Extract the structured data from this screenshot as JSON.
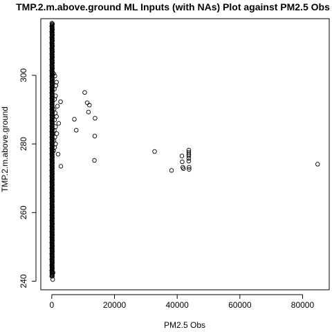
{
  "chart_data": {
    "type": "scatter",
    "title": "TMP.2.m.above.ground ML Inputs (with NAs) Plot against PM2.5 Obs",
    "xlabel": "PM2.5 Obs",
    "ylabel": "TMP.2.m.above.ground",
    "xlim": [
      -3500,
      88500
    ],
    "ylim": [
      237.5,
      316.5
    ],
    "x_ticks": [
      0,
      20000,
      40000,
      60000,
      80000
    ],
    "y_ticks": [
      240,
      260,
      280,
      300
    ],
    "x_tick_labels": [
      "0",
      "20000",
      "40000",
      "60000",
      "80000"
    ],
    "y_tick_labels": [
      "240",
      "260",
      "280",
      "300"
    ],
    "grid": false,
    "legend": "none",
    "marker": "open-circle",
    "dense_column": {
      "x": 100,
      "y_min": 241.5,
      "y_max": 315.2,
      "count": 320
    },
    "points": [
      {
        "x": 300,
        "y": 240.5
      },
      {
        "x": 200,
        "y": 241.5
      },
      {
        "x": 400,
        "y": 242.5
      },
      {
        "x": 600,
        "y": 300.5
      },
      {
        "x": 1000,
        "y": 299.8
      },
      {
        "x": 1500,
        "y": 298
      },
      {
        "x": 1300,
        "y": 297
      },
      {
        "x": 800,
        "y": 296
      },
      {
        "x": 1200,
        "y": 294
      },
      {
        "x": 900,
        "y": 293
      },
      {
        "x": 2800,
        "y": 292.3
      },
      {
        "x": 1800,
        "y": 291
      },
      {
        "x": 700,
        "y": 290
      },
      {
        "x": 1100,
        "y": 289
      },
      {
        "x": 1500,
        "y": 288
      },
      {
        "x": 900,
        "y": 287
      },
      {
        "x": 2200,
        "y": 286
      },
      {
        "x": 1200,
        "y": 285
      },
      {
        "x": 800,
        "y": 284
      },
      {
        "x": 1600,
        "y": 283
      },
      {
        "x": 1000,
        "y": 282
      },
      {
        "x": 700,
        "y": 281
      },
      {
        "x": 1200,
        "y": 280
      },
      {
        "x": 900,
        "y": 279
      },
      {
        "x": 600,
        "y": 278
      },
      {
        "x": 2000,
        "y": 277
      },
      {
        "x": 2900,
        "y": 273.5
      },
      {
        "x": 10500,
        "y": 295
      },
      {
        "x": 11300,
        "y": 292
      },
      {
        "x": 12000,
        "y": 291.3
      },
      {
        "x": 11700,
        "y": 289.3
      },
      {
        "x": 7200,
        "y": 287.2
      },
      {
        "x": 13800,
        "y": 287.5
      },
      {
        "x": 7800,
        "y": 284
      },
      {
        "x": 13700,
        "y": 282.3
      },
      {
        "x": 13600,
        "y": 275.2
      },
      {
        "x": 32800,
        "y": 277.8
      },
      {
        "x": 38200,
        "y": 272.3
      },
      {
        "x": 41500,
        "y": 276.5
      },
      {
        "x": 41600,
        "y": 274.8
      },
      {
        "x": 41800,
        "y": 273.2
      },
      {
        "x": 42000,
        "y": 272.8
      },
      {
        "x": 43700,
        "y": 278.2
      },
      {
        "x": 43700,
        "y": 277.6
      },
      {
        "x": 43700,
        "y": 277
      },
      {
        "x": 43700,
        "y": 276.5
      },
      {
        "x": 43700,
        "y": 275.8
      },
      {
        "x": 43700,
        "y": 275
      },
      {
        "x": 43800,
        "y": 273.2
      },
      {
        "x": 43800,
        "y": 272.6
      },
      {
        "x": 84800,
        "y": 274.1
      }
    ]
  }
}
